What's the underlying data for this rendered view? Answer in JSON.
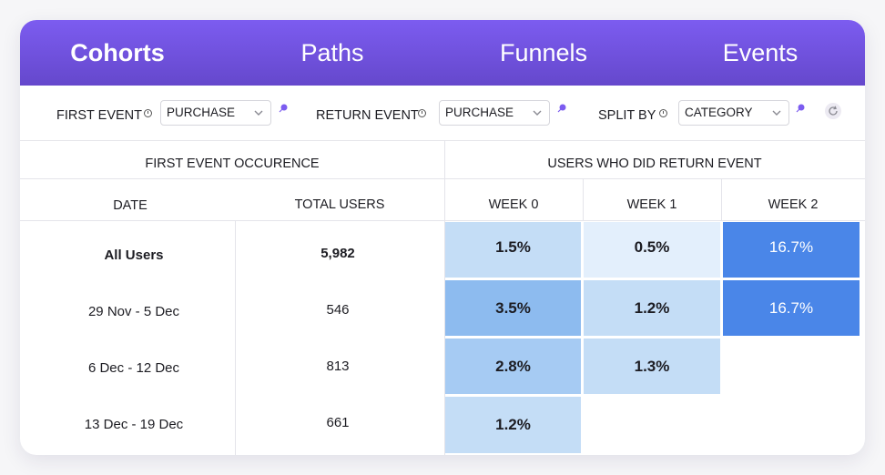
{
  "tabs": [
    {
      "label": "Cohorts",
      "active": true
    },
    {
      "label": "Paths",
      "active": false
    },
    {
      "label": "Funnels",
      "active": false
    },
    {
      "label": "Events",
      "active": false
    }
  ],
  "filters": {
    "first_event": {
      "label": "FIRST EVENT",
      "value": "PURCHASE"
    },
    "return_event": {
      "label": "RETURN EVENT",
      "value": "PURCHASE"
    },
    "split_by": {
      "label": "SPLIT BY",
      "value": "CATEGORY"
    }
  },
  "table": {
    "group_first": "FIRST EVENT OCCURENCE",
    "group_return": "USERS WHO DID RETURN EVENT",
    "col_date": "DATE",
    "col_total": "TOTAL USERS",
    "weeks": [
      "WEEK 0",
      "WEEK 1",
      "WEEK 2"
    ],
    "rows": [
      {
        "date": "All Users",
        "total": "5,982",
        "cells": [
          "1.5%",
          "0.5%",
          "16.7%"
        ]
      },
      {
        "date": "29 Nov - 5 Dec",
        "total": "546",
        "cells": [
          "3.5%",
          "1.2%",
          "16.7%"
        ]
      },
      {
        "date": "6 Dec - 12 Dec",
        "total": "813",
        "cells": [
          "2.8%",
          "1.3%"
        ]
      },
      {
        "date": "13 Dec - 19 Dec",
        "total": "661",
        "cells": [
          "1.2%"
        ]
      }
    ]
  },
  "colors": {
    "accent": "#7c5cf0",
    "heat_lightest": "#e3effc",
    "heat_light": "#c4ddf6",
    "heat_mid": "#a6cbf3",
    "heat_strong": "#8dbbef",
    "heat_max": "#4a86e8"
  }
}
